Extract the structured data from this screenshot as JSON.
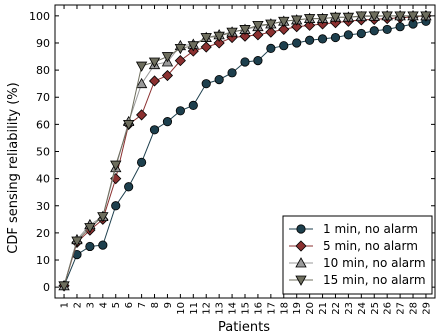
{
  "chart_data": {
    "type": "line",
    "xlabel": "Patients",
    "ylabel": "CDF sensing reliability (%)",
    "xlim": [
      0.3,
      29.7
    ],
    "ylim": [
      -4,
      104
    ],
    "x_ticks": [
      1,
      2,
      3,
      4,
      5,
      6,
      7,
      8,
      9,
      10,
      11,
      12,
      13,
      14,
      15,
      16,
      17,
      18,
      19,
      20,
      21,
      22,
      23,
      24,
      25,
      26,
      27,
      28,
      29
    ],
    "x_tick_labels": [
      "1",
      "2",
      "3",
      "4",
      "5",
      "6",
      "7",
      "8",
      "9",
      "10",
      "11",
      "12",
      "13",
      "14",
      "15",
      "16",
      "17",
      "18",
      "19",
      "20",
      "21",
      "22",
      "23",
      "24",
      "25",
      "26",
      "27",
      "28",
      "29"
    ],
    "y_ticks": [
      0,
      10,
      20,
      30,
      40,
      50,
      60,
      70,
      80,
      90,
      100
    ],
    "y_tick_labels": [
      "0",
      "10",
      "20",
      "30",
      "40",
      "50",
      "60",
      "70",
      "80",
      "90",
      "100"
    ],
    "legend_position": "bottom-right",
    "grid": false,
    "x": [
      1,
      2,
      3,
      4,
      5,
      6,
      7,
      8,
      9,
      10,
      11,
      12,
      13,
      14,
      15,
      16,
      17,
      18,
      19,
      20,
      21,
      22,
      23,
      24,
      25,
      26,
      27,
      28,
      29
    ],
    "series": [
      {
        "name": "1 min, no alarm",
        "color": "#1d3f4d",
        "marker": "circle",
        "values": [
          0.5,
          12,
          15,
          15.5,
          30,
          37,
          46,
          58,
          61,
          65,
          67,
          75,
          76.5,
          79,
          83,
          83.5,
          88,
          89,
          90,
          91,
          91.5,
          92,
          93,
          93.5,
          94.5,
          95,
          96,
          97,
          98
        ]
      },
      {
        "name": "5 min, no alarm",
        "color": "#8b3030",
        "marker": "diamond",
        "values": [
          0.5,
          16.5,
          21,
          25,
          40,
          60,
          63.5,
          76,
          78,
          83.5,
          87,
          88.5,
          90,
          92,
          92.5,
          93,
          94,
          95,
          96,
          96.5,
          97,
          97.5,
          98,
          98.5,
          98.7,
          99,
          99.3,
          99.6,
          100
        ]
      },
      {
        "name": "10 min, no alarm",
        "color": "#9a9a9a",
        "marker": "triangle-up",
        "values": [
          0.5,
          17.5,
          23,
          26,
          44,
          61,
          75,
          82,
          83,
          89,
          89.5,
          92,
          93,
          94,
          95,
          96,
          97,
          98,
          98.5,
          99,
          99,
          99.5,
          99.5,
          99.7,
          99.8,
          100,
          100,
          100,
          100
        ]
      },
      {
        "name": "15 min, no alarm",
        "color": "#6e6e5e",
        "marker": "triangle-down",
        "values": [
          0.5,
          17,
          22,
          26,
          45,
          60,
          81.5,
          83,
          85,
          88,
          89,
          92,
          92.5,
          94,
          95,
          96.5,
          97,
          98,
          98.5,
          99,
          99,
          99.5,
          99.5,
          100,
          100,
          100,
          100,
          100,
          100
        ]
      }
    ]
  }
}
